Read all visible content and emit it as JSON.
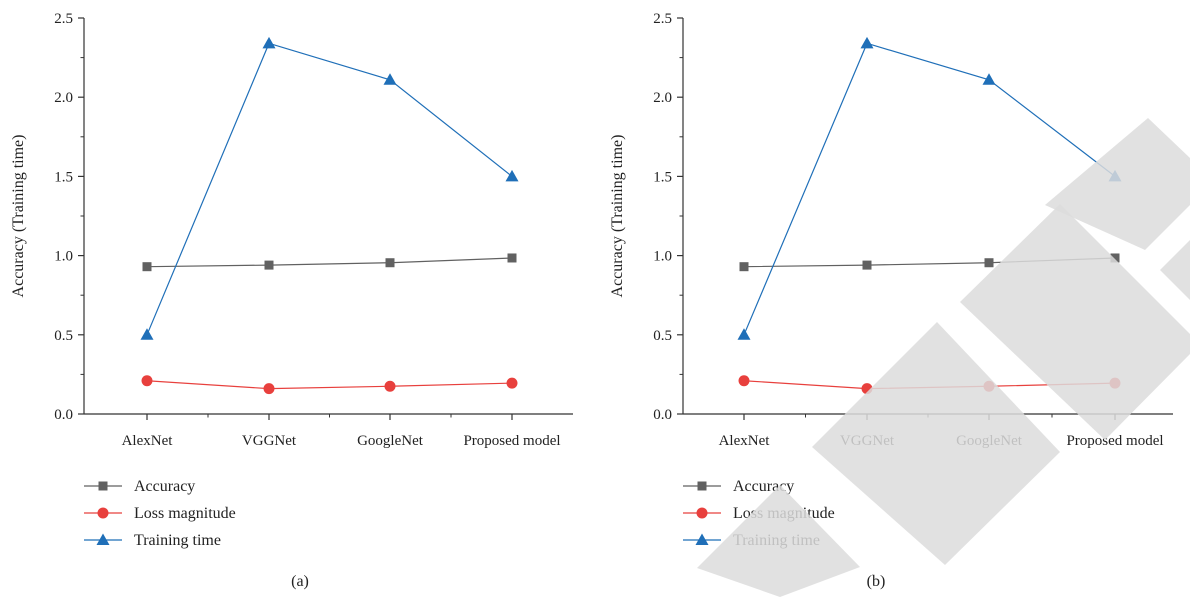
{
  "colors": {
    "accuracy": "#616161",
    "loss": "#e8403d",
    "training": "#1f6fb8",
    "axis": "#333333",
    "watermark": "#dcdcdc"
  },
  "watermark": {
    "text": "RETRACTED",
    "shown_on": "b"
  },
  "chart_data": [
    {
      "panel": "a",
      "type": "line",
      "categories": [
        "AlexNet",
        "VGGNet",
        "GoogleNet",
        "Proposed model"
      ],
      "ylabel": "Accuracy (Training time)",
      "xlabel": "",
      "ylim": [
        0.0,
        2.5
      ],
      "yticks": [
        "0.0",
        "0.5",
        "1.0",
        "1.5",
        "2.0",
        "2.5"
      ],
      "grid": false,
      "legend_position": "bottom-left",
      "panel_label": "(a)",
      "series": [
        {
          "name": "Accuracy",
          "marker": "square",
          "color": "#616161",
          "values": [
            0.93,
            0.94,
            0.955,
            0.985
          ]
        },
        {
          "name": "Loss magnitude",
          "marker": "circle",
          "color": "#e8403d",
          "values": [
            0.21,
            0.16,
            0.175,
            0.195
          ]
        },
        {
          "name": "Training time",
          "marker": "triangle",
          "color": "#1f6fb8",
          "values": [
            0.5,
            2.34,
            2.11,
            1.5
          ]
        }
      ]
    },
    {
      "panel": "b",
      "type": "line",
      "categories": [
        "AlexNet",
        "VGGNet",
        "GoogleNet",
        "Proposed model"
      ],
      "ylabel": "Accuracy (Training time)",
      "xlabel": "",
      "ylim": [
        0.0,
        2.5
      ],
      "yticks": [
        "0.0",
        "0.5",
        "1.0",
        "1.5",
        "2.0",
        "2.5"
      ],
      "grid": false,
      "legend_position": "bottom-left",
      "panel_label": "(b)",
      "series": [
        {
          "name": "Accuracy",
          "marker": "square",
          "color": "#616161",
          "values": [
            0.93,
            0.94,
            0.955,
            0.985
          ]
        },
        {
          "name": "Loss magnitude",
          "marker": "circle",
          "color": "#e8403d",
          "values": [
            0.21,
            0.16,
            0.175,
            0.195
          ]
        },
        {
          "name": "Training time",
          "marker": "triangle",
          "color": "#1f6fb8",
          "values": [
            0.5,
            2.34,
            2.11,
            1.5
          ]
        }
      ]
    }
  ]
}
